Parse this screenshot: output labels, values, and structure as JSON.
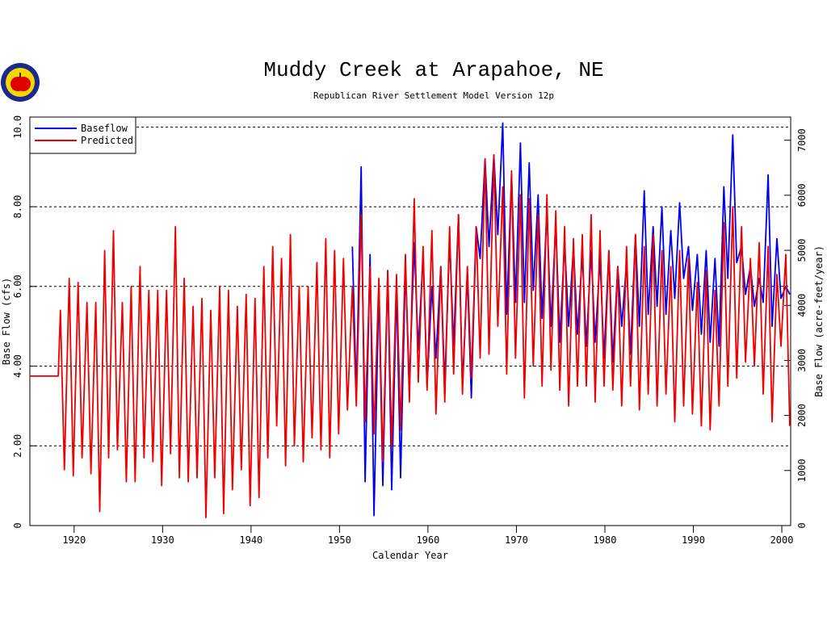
{
  "chart_data": {
    "type": "line",
    "title": "Muddy Creek at Arapahoe, NE",
    "subtitle": "Republican River Settlement Model Version 12p",
    "x_label": "Calendar Year",
    "y_label": "Base Flow (cfs)",
    "y2_label": "Base Flow (acre-feet/year)",
    "xlim": [
      1915,
      2001
    ],
    "xticks": [
      1920,
      1930,
      1940,
      1950,
      1960,
      1970,
      1980,
      1990,
      2000
    ],
    "ylim": [
      0,
      10.25
    ],
    "yticks": [
      0,
      {
        "value": 2,
        "label": "2.00"
      },
      {
        "value": 4,
        "label": "4.00"
      },
      {
        "value": 6,
        "label": "6.00"
      },
      {
        "value": 8,
        "label": "8.00"
      },
      {
        "value": 10,
        "label": "10.0"
      }
    ],
    "y2lim": [
      0,
      7421
    ],
    "y2ticks": [
      0,
      1000,
      2000,
      3000,
      4000,
      5000,
      6000,
      7000
    ],
    "grid": true,
    "legend": "upper left",
    "series": [
      {
        "name": "Baseflow",
        "color": "#0000ee",
        "x": [
          1951.45,
          1951.9,
          1952.45,
          1952.9,
          1953.45,
          1953.9,
          1954.45,
          1954.9,
          1955.45,
          1955.9,
          1956.45,
          1956.9,
          1957.45,
          1957.9,
          1958.45,
          1958.9,
          1959.45,
          1959.9,
          1960.45,
          1960.9,
          1961.45,
          1961.9,
          1962.45,
          1962.9,
          1963.45,
          1963.9,
          1964.45,
          1964.9,
          1965.45,
          1965.9,
          1966.45,
          1966.9,
          1967.45,
          1967.9,
          1968.45,
          1968.9,
          1969.45,
          1969.9,
          1970.45,
          1970.9,
          1971.45,
          1971.9,
          1972.45,
          1972.9,
          1973.45,
          1973.9,
          1974.45,
          1974.9,
          1975.45,
          1975.9,
          1976.45,
          1976.9,
          1977.45,
          1977.9,
          1978.45,
          1978.9,
          1979.45,
          1979.9,
          1980.45,
          1980.9,
          1981.45,
          1981.9,
          1982.45,
          1982.9,
          1983.45,
          1983.9,
          1984.45,
          1984.9,
          1985.45,
          1985.9,
          1986.45,
          1986.9,
          1987.45,
          1987.9,
          1988.45,
          1988.9,
          1989.45,
          1989.9,
          1990.45,
          1990.9,
          1991.45,
          1991.9,
          1992.45,
          1992.9,
          1993.45,
          1993.9,
          1994.45,
          1994.9,
          1995.45,
          1995.9,
          1996.45,
          1996.9,
          1997.45,
          1997.9,
          1998.45,
          1998.9,
          1999.45,
          1999.9,
          2000.45,
          2000.9
        ],
        "values": [
          7.0,
          3.3,
          9.0,
          1.1,
          6.8,
          0.25,
          6.0,
          1.0,
          6.4,
          0.9,
          6.0,
          1.2,
          6.5,
          3.5,
          7.1,
          4.4,
          6.8,
          3.5,
          6.0,
          4.2,
          6.5,
          3.5,
          7.2,
          4.5,
          7.8,
          3.5,
          6.3,
          3.2,
          7.5,
          6.7,
          9.2,
          7.0,
          9.3,
          7.3,
          10.1,
          5.3,
          8.8,
          5.6,
          9.6,
          5.6,
          9.1,
          5.9,
          8.3,
          5.2,
          7.9,
          5.0,
          7.6,
          4.6,
          7.1,
          5.0,
          7.0,
          4.8,
          6.8,
          4.5,
          6.9,
          4.6,
          6.7,
          4.2,
          6.9,
          4.1,
          6.5,
          5.0,
          6.6,
          4.3,
          7.3,
          5.0,
          8.4,
          5.3,
          7.5,
          5.5,
          8.0,
          5.3,
          7.4,
          5.7,
          8.1,
          6.2,
          7.0,
          5.4,
          6.8,
          4.8,
          6.9,
          4.6,
          6.7,
          4.5,
          8.5,
          6.2,
          9.8,
          6.6,
          7.0,
          5.8,
          6.5,
          5.5,
          6.2,
          5.6,
          8.8,
          5.0,
          7.2,
          5.7,
          6.0,
          5.8
        ]
      },
      {
        "name": "Predicted",
        "color": "#ee0000",
        "x": [
          1915,
          1918.2,
          1918.45,
          1918.9,
          1919.45,
          1919.9,
          1920.45,
          1920.9,
          1921.45,
          1921.9,
          1922.45,
          1922.9,
          1923.45,
          1923.9,
          1924.45,
          1924.9,
          1925.45,
          1925.9,
          1926.45,
          1926.9,
          1927.45,
          1927.9,
          1928.45,
          1928.9,
          1929.45,
          1929.9,
          1930.45,
          1930.9,
          1931.45,
          1931.9,
          1932.45,
          1932.9,
          1933.45,
          1933.9,
          1934.45,
          1934.9,
          1935.45,
          1935.9,
          1936.45,
          1936.9,
          1937.45,
          1937.9,
          1938.45,
          1938.9,
          1939.45,
          1939.9,
          1940.45,
          1940.9,
          1941.45,
          1941.9,
          1942.45,
          1942.9,
          1943.45,
          1943.9,
          1944.45,
          1944.9,
          1945.45,
          1945.9,
          1946.45,
          1946.9,
          1947.45,
          1947.9,
          1948.45,
          1948.9,
          1949.45,
          1949.9,
          1950.45,
          1950.9,
          1951.45,
          1951.9,
          1952.45,
          1952.9,
          1953.45,
          1953.9,
          1954.45,
          1954.9,
          1955.45,
          1955.9,
          1956.45,
          1956.9,
          1957.45,
          1957.9,
          1958.45,
          1958.9,
          1959.45,
          1959.9,
          1960.45,
          1960.9,
          1961.45,
          1961.9,
          1962.45,
          1962.9,
          1963.45,
          1963.9,
          1964.45,
          1964.9,
          1965.45,
          1965.9,
          1966.45,
          1966.9,
          1967.45,
          1967.9,
          1968.45,
          1968.9,
          1969.45,
          1969.9,
          1970.45,
          1970.9,
          1971.45,
          1971.9,
          1972.45,
          1972.9,
          1973.45,
          1973.9,
          1974.45,
          1974.9,
          1975.45,
          1975.9,
          1976.45,
          1976.9,
          1977.45,
          1977.9,
          1978.45,
          1978.9,
          1979.45,
          1979.9,
          1980.45,
          1980.9,
          1981.45,
          1981.9,
          1982.45,
          1982.9,
          1983.45,
          1983.9,
          1984.45,
          1984.9,
          1985.45,
          1985.9,
          1986.45,
          1986.9,
          1987.45,
          1987.9,
          1988.45,
          1988.9,
          1989.45,
          1989.9,
          1990.45,
          1990.9,
          1991.45,
          1991.9,
          1992.45,
          1992.9,
          1993.45,
          1993.9,
          1994.45,
          1994.9,
          1995.45,
          1995.9,
          1996.45,
          1996.9,
          1997.45,
          1997.9,
          1998.45,
          1998.9,
          1999.45,
          1999.9,
          2000.45,
          2000.9
        ],
        "values": [
          3.75,
          3.75,
          5.4,
          1.4,
          6.2,
          1.25,
          6.1,
          1.7,
          5.6,
          1.3,
          5.6,
          0.35,
          6.9,
          1.7,
          7.4,
          1.9,
          5.6,
          1.1,
          6.0,
          1.1,
          6.5,
          1.7,
          5.9,
          1.6,
          5.9,
          1.0,
          5.9,
          1.8,
          7.5,
          1.2,
          6.2,
          1.1,
          5.5,
          1.2,
          5.7,
          0.2,
          5.4,
          1.2,
          6.0,
          0.3,
          5.9,
          0.9,
          5.5,
          1.4,
          5.8,
          0.5,
          5.7,
          0.7,
          6.5,
          1.7,
          7.0,
          2.5,
          6.7,
          1.5,
          7.3,
          2.0,
          6.0,
          1.6,
          6.0,
          2.2,
          6.6,
          1.9,
          7.2,
          1.7,
          6.9,
          2.3,
          6.7,
          2.9,
          6.0,
          3.0,
          7.8,
          2.6,
          6.5,
          2.3,
          6.2,
          1.6,
          6.4,
          2.0,
          6.3,
          2.4,
          6.8,
          3.1,
          8.2,
          3.6,
          7.0,
          3.4,
          7.4,
          2.8,
          6.5,
          3.1,
          7.5,
          3.8,
          7.8,
          3.3,
          6.5,
          3.7,
          7.5,
          4.2,
          9.2,
          4.3,
          9.3,
          5.0,
          8.5,
          3.8,
          8.9,
          4.2,
          8.3,
          3.2,
          8.2,
          4.0,
          7.8,
          3.5,
          8.3,
          3.9,
          7.9,
          3.4,
          7.5,
          3.0,
          7.2,
          3.5,
          7.3,
          3.5,
          7.8,
          3.1,
          7.4,
          3.5,
          6.9,
          3.4,
          6.5,
          3.0,
          7.0,
          3.5,
          7.3,
          2.9,
          7.0,
          3.3,
          7.3,
          3.0,
          6.9,
          3.3,
          6.5,
          2.6,
          6.9,
          3.0,
          6.7,
          2.8,
          6.1,
          2.5,
          6.4,
          2.4,
          5.9,
          3.0,
          7.6,
          3.5,
          8.0,
          3.7,
          7.5,
          4.1,
          6.7,
          4.0,
          7.1,
          3.3,
          7.0,
          2.6,
          6.3,
          4.5,
          6.8,
          2.5
        ]
      }
    ]
  }
}
